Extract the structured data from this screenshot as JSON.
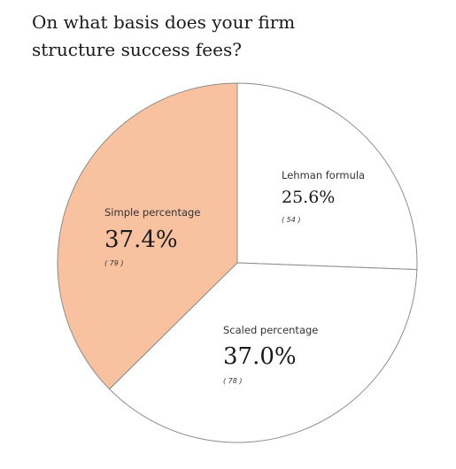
{
  "chart_data": {
    "type": "pie",
    "title": "On what basis does your firm structure success fees?",
    "slices": [
      {
        "label": "Lehman formula",
        "percent_label": "25.6%",
        "value": 25.6,
        "count_label": "( 54 )",
        "count": 54,
        "color": "#ffffff"
      },
      {
        "label": "Scaled percentage",
        "percent_label": "37.0%",
        "value": 37.0,
        "count_label": "( 78 )",
        "count": 78,
        "color": "#ffffff"
      },
      {
        "label": "Simple percentage",
        "percent_label": "37.4%",
        "value": 37.4,
        "count_label": "( 79 )",
        "count": 79,
        "color": "#f8c1a0"
      }
    ],
    "start_angle_deg": 0,
    "direction": "clockwise",
    "slice_stroke_color": "#8c8c8c"
  }
}
